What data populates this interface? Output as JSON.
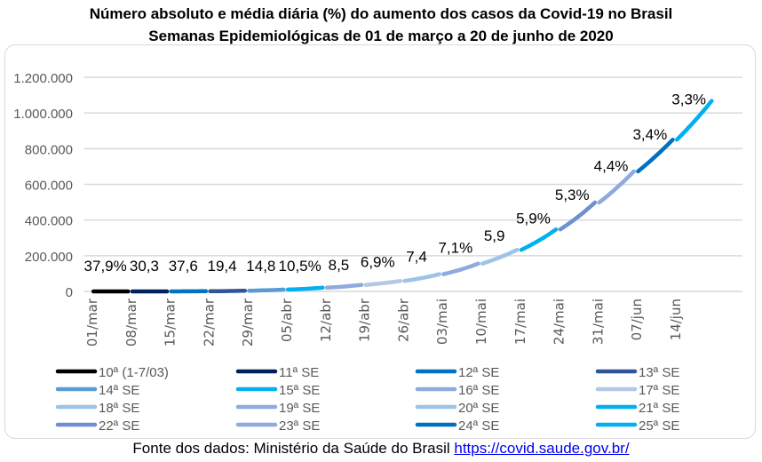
{
  "chart_data": {
    "type": "line",
    "title": "Número absoluto e média diária (%) do aumento dos casos da Covid-19 no Brasil",
    "subtitle": "Semanas Epidemiológicas de 01 de março a 20 de junho de 2020",
    "xlabel": "",
    "ylabel": "",
    "ylim": [
      0,
      1200000
    ],
    "y_ticks": [
      "0",
      "200.000",
      "400.000",
      "600.000",
      "800.000",
      "1.000.000",
      "1.200.000"
    ],
    "y_tick_values": [
      0,
      200000,
      400000,
      600000,
      800000,
      1000000,
      1200000
    ],
    "x_ticks": [
      "01/mar",
      "08/mar",
      "15/mar",
      "22/mar",
      "29/mar",
      "05/abr",
      "12/abr",
      "19/abr",
      "26/abr",
      "03/mai",
      "10/mai",
      "17/mai",
      "24/mai",
      "31/mai",
      "07/jun",
      "14/jun"
    ],
    "grid": true,
    "legend_position": "bottom",
    "series": [
      {
        "name": "10ª (1-7/03)",
        "color": "#000000",
        "start": 0,
        "end": 19,
        "label": "37,9%"
      },
      {
        "name": "11ª SE",
        "color": "#002060",
        "start": 19,
        "end": 121,
        "label": "30,3"
      },
      {
        "name": "12ª SE",
        "color": "#0070C0",
        "start": 121,
        "end": 1128,
        "label": "37,6"
      },
      {
        "name": "13ª SE",
        "color": "#2F5597",
        "start": 1128,
        "end": 3904,
        "label": "19,4"
      },
      {
        "name": "14ª SE",
        "color": "#5B9BD5",
        "start": 3904,
        "end": 10278,
        "label": "14,8"
      },
      {
        "name": "15ª SE",
        "color": "#00B0F0",
        "start": 10278,
        "end": 20727,
        "label": "10,5%"
      },
      {
        "name": "16ª SE",
        "color": "#8FAADC",
        "start": 20727,
        "end": 36599,
        "label": "8,5"
      },
      {
        "name": "17ª SE",
        "color": "#B4C7E7",
        "start": 36599,
        "end": 58509,
        "label": "6,9%"
      },
      {
        "name": "18ª SE",
        "color": "#9DC3E6",
        "start": 58509,
        "end": 96559,
        "label": "7,4"
      },
      {
        "name": "19ª SE",
        "color": "#8FAADC",
        "start": 96559,
        "end": 155939,
        "label": "7,1%"
      },
      {
        "name": "20ª SE",
        "color": "#9DC3E6",
        "start": 155939,
        "end": 233142,
        "label": "5,9"
      },
      {
        "name": "21ª SE",
        "color": "#00B0F0",
        "start": 233142,
        "end": 347398,
        "label": "5,9%"
      },
      {
        "name": "22ª SE",
        "color": "#6F8FCF",
        "start": 347398,
        "end": 498440,
        "label": "5,3%"
      },
      {
        "name": "23ª SE",
        "color": "#8FAADC",
        "start": 498440,
        "end": 672846,
        "label": "4,4%"
      },
      {
        "name": "24ª SE",
        "color": "#0070C0",
        "start": 672846,
        "end": 850514,
        "label": "3,4%"
      },
      {
        "name": "25ª SE",
        "color": "#00B0F0",
        "start": 850514,
        "end": 1067579,
        "label": "3,3%"
      }
    ]
  },
  "source": {
    "text": "Fonte dos dados: Ministério da Saúde do Brasil",
    "link": "https://covid.saude.gov.br/"
  }
}
